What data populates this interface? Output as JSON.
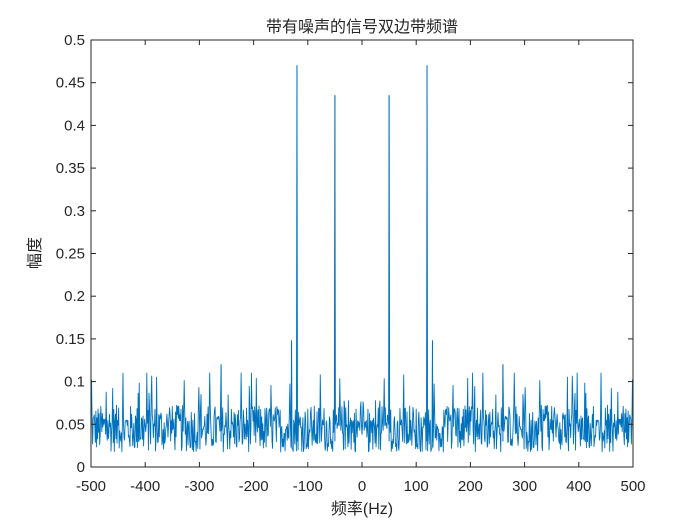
{
  "chart_data": {
    "type": "line",
    "title": "带有噪声的信号双边带频谱",
    "xlabel": "频率(Hz)",
    "ylabel": "幅度",
    "xlim": [
      -500,
      500
    ],
    "ylim": [
      0,
      0.5
    ],
    "x_ticks": [
      "-500",
      "-400",
      "-300",
      "-200",
      "-100",
      "0",
      "100",
      "200",
      "300",
      "400",
      "500"
    ],
    "y_ticks": [
      "0",
      "0.05",
      "0.1",
      "0.15",
      "0.2",
      "0.25",
      "0.3",
      "0.35",
      "0.4",
      "0.45",
      "0.5"
    ],
    "grid": false,
    "series": [
      {
        "color": "#0072bd",
        "noise_floor": {
          "range": [
            0,
            0.11
          ],
          "typical": 0.045
        },
        "peaks": [
          {
            "x": -120,
            "y": 0.47
          },
          {
            "x": -50,
            "y": 0.435
          },
          {
            "x": 50,
            "y": 0.435
          },
          {
            "x": 120,
            "y": 0.47
          },
          {
            "x": -130,
            "y": 0.148
          },
          {
            "x": 130,
            "y": 0.148
          },
          {
            "x": -260,
            "y": 0.12
          },
          {
            "x": 260,
            "y": 0.12
          }
        ]
      }
    ]
  }
}
